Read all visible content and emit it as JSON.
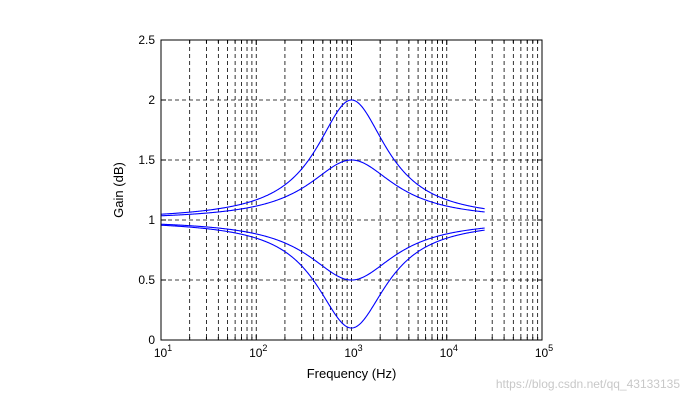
{
  "chart_data": {
    "type": "line",
    "title": "",
    "xlabel": "Frequency (Hz)",
    "ylabel": "Gain (dB)",
    "xscale": "log",
    "xlim": [
      10,
      100000
    ],
    "ylim": [
      0,
      2.5
    ],
    "grid": "dashed, major and minor",
    "line_color": "#0000ff",
    "x_ticks": [
      {
        "base": "10",
        "exp": "1",
        "value": 10
      },
      {
        "base": "10",
        "exp": "2",
        "value": 100
      },
      {
        "base": "10",
        "exp": "3",
        "value": 1000
      },
      {
        "base": "10",
        "exp": "4",
        "value": 10000
      },
      {
        "base": "10",
        "exp": "5",
        "value": 100000
      }
    ],
    "y_ticks": [
      "0",
      "0.5",
      "1",
      "1.5",
      "2",
      "2.5"
    ],
    "curve_frequency_range": [
      10,
      25000
    ],
    "series": [
      {
        "center_freq": 1000,
        "peak_gain": 2.0,
        "width_decades": 0.45
      },
      {
        "center_freq": 1000,
        "peak_gain": 1.5,
        "width_decades": 0.55
      },
      {
        "center_freq": 1000,
        "peak_gain": 0.5,
        "width_decades": 0.55
      },
      {
        "center_freq": 1000,
        "peak_gain": 0.1,
        "width_decades": 0.45
      }
    ]
  },
  "watermark": "https://blog.csdn.net/qq_43133135"
}
